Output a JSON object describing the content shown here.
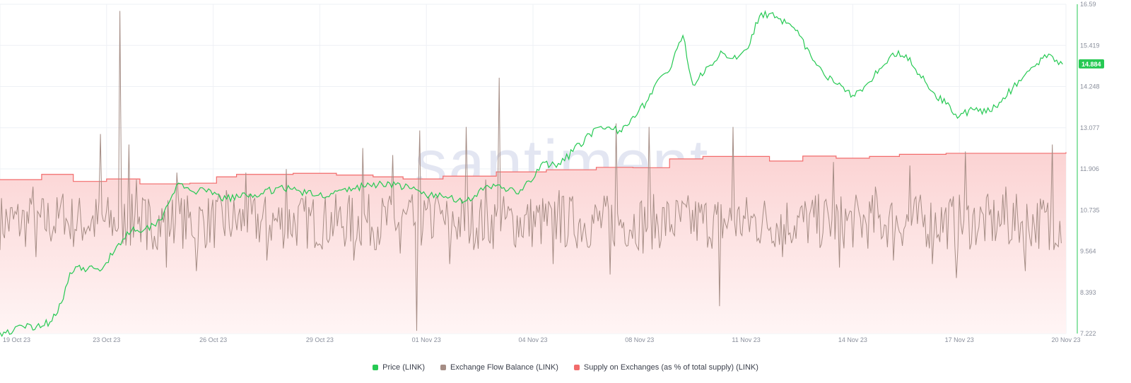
{
  "watermark": "santiment",
  "colors": {
    "price": "#26c953",
    "flow": "#a58d85",
    "supply": "#f26b6b",
    "supply_fill_top": "#fbd3d3",
    "supply_fill_bottom": "#fff5f5",
    "grid": "#eef0f5",
    "axis": "#8a8f9c",
    "price_tag": "#26c953"
  },
  "legend": [
    {
      "label": "Price (LINK)",
      "color": "#26c953"
    },
    {
      "label": "Exchange Flow Balance (LINK)",
      "color": "#a58d85"
    },
    {
      "label": "Supply on Exchanges (as % of total supply) (LINK)",
      "color": "#f26b6b"
    }
  ],
  "chart_data": {
    "type": "line",
    "x_ticks": [
      "19 Oct 23",
      "23 Oct 23",
      "26 Oct 23",
      "29 Oct 23",
      "01 Nov 23",
      "04 Nov 23",
      "08 Nov 23",
      "11 Nov 23",
      "14 Nov 23",
      "17 Nov 23",
      "20 Nov 23"
    ],
    "x_range_days": [
      0,
      32
    ],
    "y_right_ticks": [
      "16.59",
      "15.419",
      "14.248",
      "13.077",
      "11.906",
      "10.735",
      "9.564",
      "8.393",
      "7.222"
    ],
    "y_range": [
      7.222,
      16.59
    ],
    "current_price_label": "14.884",
    "current_price": 14.884,
    "grid": true,
    "legend_position": "bottom-center",
    "series": [
      {
        "name": "Price (LINK)",
        "axis": "right",
        "points": [
          [
            0,
            7.25
          ],
          [
            0.4,
            7.3
          ],
          [
            0.7,
            7.42
          ],
          [
            1.1,
            7.43
          ],
          [
            1.5,
            7.55
          ],
          [
            1.9,
            8.2
          ],
          [
            2.1,
            8.95
          ],
          [
            2.5,
            9.1
          ],
          [
            3.0,
            9.0
          ],
          [
            3.5,
            9.7
          ],
          [
            4.0,
            10.25
          ],
          [
            4.3,
            10.15
          ],
          [
            4.8,
            10.45
          ],
          [
            5.3,
            11.45
          ],
          [
            5.7,
            11.3
          ],
          [
            6.2,
            11.25
          ],
          [
            6.8,
            11.05
          ],
          [
            7.4,
            11.15
          ],
          [
            7.9,
            11.2
          ],
          [
            8.4,
            11.4
          ],
          [
            8.9,
            11.3
          ],
          [
            9.5,
            11.15
          ],
          [
            10.0,
            11.2
          ],
          [
            10.6,
            11.35
          ],
          [
            11.1,
            11.45
          ],
          [
            11.7,
            11.5
          ],
          [
            12.3,
            11.35
          ],
          [
            12.9,
            11.15
          ],
          [
            13.5,
            11.1
          ],
          [
            14.0,
            11.0
          ],
          [
            14.5,
            11.3
          ],
          [
            15.0,
            11.45
          ],
          [
            15.5,
            11.2
          ],
          [
            16.0,
            11.6
          ],
          [
            16.3,
            12.1
          ],
          [
            16.7,
            11.95
          ],
          [
            17.2,
            12.4
          ],
          [
            17.7,
            12.9
          ],
          [
            18.1,
            13.05
          ],
          [
            18.6,
            13.0
          ],
          [
            19.0,
            13.4
          ],
          [
            19.4,
            13.8
          ],
          [
            19.8,
            14.5
          ],
          [
            20.1,
            14.7
          ],
          [
            20.5,
            15.7
          ],
          [
            20.8,
            14.3
          ],
          [
            21.2,
            14.8
          ],
          [
            21.7,
            15.2
          ],
          [
            22.0,
            15.05
          ],
          [
            22.4,
            15.3
          ],
          [
            22.8,
            16.25
          ],
          [
            23.2,
            16.35
          ],
          [
            23.6,
            16.05
          ],
          [
            24.0,
            15.7
          ],
          [
            24.4,
            15.0
          ],
          [
            24.8,
            14.5
          ],
          [
            25.2,
            14.35
          ],
          [
            25.6,
            14.0
          ],
          [
            26.0,
            14.3
          ],
          [
            26.4,
            14.75
          ],
          [
            26.8,
            15.2
          ],
          [
            27.2,
            15.15
          ],
          [
            27.6,
            14.6
          ],
          [
            28.0,
            14.1
          ],
          [
            28.4,
            13.75
          ],
          [
            28.8,
            13.4
          ],
          [
            29.2,
            13.6
          ],
          [
            29.6,
            13.5
          ],
          [
            30.0,
            13.8
          ],
          [
            30.4,
            14.2
          ],
          [
            30.9,
            14.7
          ],
          [
            31.3,
            15.05
          ],
          [
            31.6,
            15.1
          ],
          [
            31.9,
            14.884
          ]
        ]
      },
      {
        "name": "Exchange Flow Balance (LINK)",
        "axis": "right",
        "baseline": 10.4,
        "spikes_up": [
          [
            1.0,
            11.4
          ],
          [
            1.9,
            11.2
          ],
          [
            3.0,
            12.9
          ],
          [
            3.6,
            16.4
          ],
          [
            3.85,
            12.6
          ],
          [
            4.1,
            11.6
          ],
          [
            5.3,
            11.8
          ],
          [
            6.8,
            11.3
          ],
          [
            7.4,
            11.8
          ],
          [
            8.0,
            11.2
          ],
          [
            8.6,
            11.9
          ],
          [
            10.9,
            12.5
          ],
          [
            11.8,
            12.3
          ],
          [
            12.6,
            13.0
          ],
          [
            13.1,
            11.1
          ],
          [
            14.0,
            13.1
          ],
          [
            14.6,
            11.6
          ],
          [
            15.0,
            14.5
          ],
          [
            16.8,
            11.3
          ],
          [
            18.5,
            13.2
          ],
          [
            19.5,
            13.1
          ],
          [
            22.0,
            13.1
          ],
          [
            23.5,
            11.4
          ],
          [
            25.0,
            12.1
          ],
          [
            26.3,
            11.4
          ],
          [
            27.3,
            12.0
          ],
          [
            28.0,
            12.7
          ],
          [
            29.0,
            12.4
          ],
          [
            30.2,
            11.4
          ],
          [
            31.6,
            12.6
          ]
        ],
        "spikes_down": [
          [
            1.1,
            9.4
          ],
          [
            4.4,
            9.6
          ],
          [
            5.0,
            9.1
          ],
          [
            5.9,
            9.0
          ],
          [
            8.0,
            9.3
          ],
          [
            10.6,
            9.3
          ],
          [
            12.0,
            9.5
          ],
          [
            12.5,
            7.3
          ],
          [
            13.5,
            9.2
          ],
          [
            16.6,
            9.2
          ],
          [
            18.3,
            8.9
          ],
          [
            19.3,
            9.5
          ],
          [
            21.6,
            8.0
          ],
          [
            23.5,
            9.4
          ],
          [
            25.2,
            9.1
          ],
          [
            26.8,
            9.3
          ],
          [
            28.0,
            9.2
          ],
          [
            28.7,
            8.8
          ],
          [
            30.8,
            9.0
          ],
          [
            31.5,
            9.6
          ]
        ]
      },
      {
        "name": "Supply on Exchanges (as % of total supply) (LINK)",
        "axis": "left",
        "steps": [
          [
            0,
            11.6
          ],
          [
            1.25,
            11.75
          ],
          [
            2.2,
            11.55
          ],
          [
            3.2,
            11.62
          ],
          [
            4.2,
            11.48
          ],
          [
            5.7,
            11.5
          ],
          [
            6.5,
            11.68
          ],
          [
            7.1,
            11.75
          ],
          [
            8.8,
            11.78
          ],
          [
            10.1,
            11.73
          ],
          [
            11.2,
            11.68
          ],
          [
            12.1,
            11.62
          ],
          [
            13.3,
            11.7
          ],
          [
            14.9,
            11.82
          ],
          [
            16.4,
            11.88
          ],
          [
            17.9,
            11.95
          ],
          [
            19.0,
            11.94
          ],
          [
            20.1,
            12.19
          ],
          [
            21.1,
            12.26
          ],
          [
            23.1,
            12.13
          ],
          [
            24.1,
            12.27
          ],
          [
            25.1,
            12.21
          ],
          [
            26.1,
            12.26
          ],
          [
            27.0,
            12.32
          ],
          [
            28.4,
            12.35
          ],
          [
            32,
            12.38
          ]
        ]
      }
    ]
  }
}
